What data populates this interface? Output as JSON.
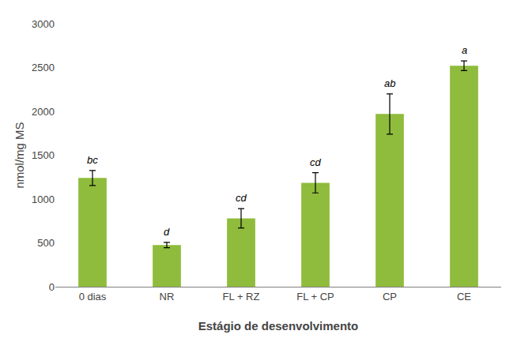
{
  "chart_data": {
    "type": "bar",
    "categories": [
      "0 dias",
      "NR",
      "FL + RZ",
      "FL + CP",
      "CP",
      "CE"
    ],
    "values": [
      1240,
      475,
      780,
      1185,
      1970,
      2520
    ],
    "errors": [
      85,
      30,
      110,
      115,
      230,
      55
    ],
    "annotations": [
      "bc",
      "d",
      "cd",
      "cd",
      "ab",
      "a"
    ],
    "color": "#8fbc3c",
    "xlabel": "Estágio de desenvolvimento",
    "ylabel": "nmol/mg MS",
    "ylim": [
      0,
      3000
    ],
    "yticks": [
      0,
      500,
      1000,
      1500,
      2000,
      2500,
      3000
    ],
    "grid": false
  }
}
